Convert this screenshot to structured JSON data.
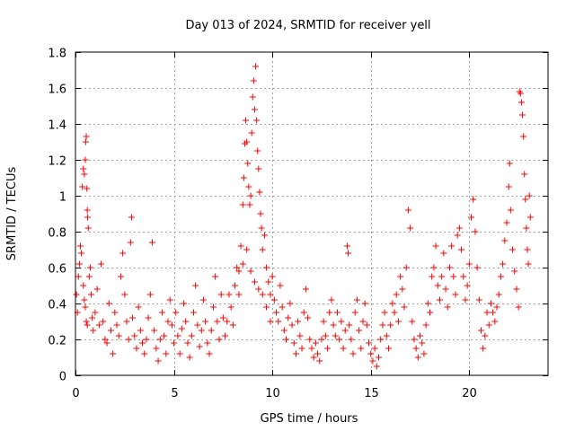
{
  "chart_data": {
    "type": "scatter",
    "title": "Day 013 of 2024, SRMTID for receiver yell",
    "xlabel": "GPS time / hours",
    "ylabel": "SRMTID / TECUs",
    "xlim": [
      0,
      24
    ],
    "ylim": [
      0,
      1.8
    ],
    "x_ticks": [
      0,
      5,
      10,
      15,
      20
    ],
    "x_tick_labels": [
      "0",
      "5",
      "10",
      "15",
      "20"
    ],
    "y_ticks": [
      0,
      0.2,
      0.4,
      0.6,
      0.8,
      1.0,
      1.2,
      1.4,
      1.6,
      1.8
    ],
    "y_tick_labels": [
      "0",
      "0.2",
      "0.4",
      "0.6",
      "0.8",
      "1",
      "1.2",
      "1.4",
      "1.6",
      "1.8"
    ],
    "grid": true,
    "marker": "plus",
    "color": "#ff0000",
    "series": [
      {
        "name": "SRMTID",
        "points": [
          [
            0.05,
            0.45
          ],
          [
            0.1,
            0.35
          ],
          [
            0.15,
            0.55
          ],
          [
            0.2,
            0.62
          ],
          [
            0.25,
            0.72
          ],
          [
            0.3,
            0.68
          ],
          [
            0.35,
            1.05
          ],
          [
            0.4,
            1.15
          ],
          [
            0.45,
            1.12
          ],
          [
            0.5,
            1.2
          ],
          [
            0.52,
            1.3
          ],
          [
            0.55,
            1.33
          ],
          [
            0.58,
            1.04
          ],
          [
            0.6,
            0.92
          ],
          [
            0.62,
            0.88
          ],
          [
            0.65,
            0.82
          ],
          [
            0.4,
            0.5
          ],
          [
            0.45,
            0.42
          ],
          [
            0.5,
            0.38
          ],
          [
            0.55,
            0.3
          ],
          [
            0.6,
            0.28
          ],
          [
            0.7,
            0.55
          ],
          [
            0.75,
            0.6
          ],
          [
            0.8,
            0.45
          ],
          [
            0.85,
            0.32
          ],
          [
            0.9,
            0.25
          ],
          [
            1.0,
            0.35
          ],
          [
            1.1,
            0.48
          ],
          [
            1.2,
            0.28
          ],
          [
            1.3,
            0.62
          ],
          [
            1.4,
            0.3
          ],
          [
            1.5,
            0.2
          ],
          [
            1.6,
            0.18
          ],
          [
            1.7,
            0.4
          ],
          [
            1.8,
            0.25
          ],
          [
            1.9,
            0.12
          ],
          [
            2.0,
            0.35
          ],
          [
            2.1,
            0.28
          ],
          [
            2.2,
            0.22
          ],
          [
            2.3,
            0.55
          ],
          [
            2.4,
            0.68
          ],
          [
            2.5,
            0.45
          ],
          [
            2.6,
            0.3
          ],
          [
            2.7,
            0.2
          ],
          [
            2.8,
            0.74
          ],
          [
            2.85,
            0.88
          ],
          [
            2.9,
            0.32
          ],
          [
            3.0,
            0.22
          ],
          [
            3.1,
            0.15
          ],
          [
            3.2,
            0.38
          ],
          [
            3.3,
            0.25
          ],
          [
            3.4,
            0.18
          ],
          [
            3.5,
            0.12
          ],
          [
            3.6,
            0.2
          ],
          [
            3.7,
            0.32
          ],
          [
            3.8,
            0.45
          ],
          [
            3.9,
            0.74
          ],
          [
            4.0,
            0.25
          ],
          [
            4.1,
            0.15
          ],
          [
            4.2,
            0.08
          ],
          [
            4.3,
            0.2
          ],
          [
            4.4,
            0.35
          ],
          [
            4.5,
            0.22
          ],
          [
            4.6,
            0.12
          ],
          [
            4.7,
            0.3
          ],
          [
            4.8,
            0.42
          ],
          [
            4.9,
            0.28
          ],
          [
            5.0,
            0.18
          ],
          [
            5.1,
            0.35
          ],
          [
            5.2,
            0.22
          ],
          [
            5.3,
            0.12
          ],
          [
            5.4,
            0.26
          ],
          [
            5.5,
            0.4
          ],
          [
            5.6,
            0.3
          ],
          [
            5.7,
            0.18
          ],
          [
            5.8,
            0.1
          ],
          [
            5.9,
            0.22
          ],
          [
            6.0,
            0.35
          ],
          [
            6.1,
            0.5
          ],
          [
            6.2,
            0.28
          ],
          [
            6.3,
            0.16
          ],
          [
            6.4,
            0.25
          ],
          [
            6.5,
            0.42
          ],
          [
            6.6,
            0.3
          ],
          [
            6.7,
            0.18
          ],
          [
            6.8,
            0.12
          ],
          [
            6.9,
            0.25
          ],
          [
            7.0,
            0.38
          ],
          [
            7.1,
            0.55
          ],
          [
            7.2,
            0.3
          ],
          [
            7.3,
            0.2
          ],
          [
            7.4,
            0.45
          ],
          [
            7.5,
            0.32
          ],
          [
            7.6,
            0.22
          ],
          [
            7.7,
            0.3
          ],
          [
            7.8,
            0.45
          ],
          [
            7.9,
            0.38
          ],
          [
            8.0,
            0.28
          ],
          [
            8.1,
            0.5
          ],
          [
            8.2,
            0.6
          ],
          [
            8.3,
            0.45
          ],
          [
            8.4,
            0.72
          ],
          [
            8.5,
            0.95
          ],
          [
            8.55,
            1.1
          ],
          [
            8.6,
            1.29
          ],
          [
            8.65,
            1.42
          ],
          [
            8.7,
            1.3
          ],
          [
            8.75,
            1.18
          ],
          [
            8.8,
            1.05
          ],
          [
            8.85,
            0.95
          ],
          [
            8.9,
            1.0
          ],
          [
            8.95,
            1.35
          ],
          [
            9.0,
            1.55
          ],
          [
            9.05,
            1.64
          ],
          [
            9.1,
            1.48
          ],
          [
            9.15,
            1.72
          ],
          [
            9.2,
            1.42
          ],
          [
            9.25,
            1.25
          ],
          [
            9.3,
            1.15
          ],
          [
            9.35,
            1.02
          ],
          [
            9.4,
            0.9
          ],
          [
            9.45,
            0.82
          ],
          [
            9.5,
            0.7
          ],
          [
            9.6,
            0.78
          ],
          [
            9.7,
            0.6
          ],
          [
            9.8,
            0.52
          ],
          [
            9.9,
            0.45
          ],
          [
            8.3,
            0.58
          ],
          [
            8.5,
            0.62
          ],
          [
            8.7,
            0.7
          ],
          [
            8.9,
            0.58
          ],
          [
            9.1,
            0.52
          ],
          [
            9.3,
            0.48
          ],
          [
            9.5,
            0.45
          ],
          [
            9.7,
            0.38
          ],
          [
            9.9,
            0.3
          ],
          [
            10.0,
            0.55
          ],
          [
            10.1,
            0.42
          ],
          [
            10.2,
            0.35
          ],
          [
            10.3,
            0.3
          ],
          [
            10.4,
            0.5
          ],
          [
            10.5,
            0.38
          ],
          [
            10.6,
            0.25
          ],
          [
            10.7,
            0.2
          ],
          [
            10.8,
            0.32
          ],
          [
            10.9,
            0.4
          ],
          [
            11.0,
            0.28
          ],
          [
            11.1,
            0.18
          ],
          [
            11.2,
            0.12
          ],
          [
            11.3,
            0.3
          ],
          [
            11.4,
            0.22
          ],
          [
            11.5,
            0.15
          ],
          [
            11.6,
            0.35
          ],
          [
            11.7,
            0.48
          ],
          [
            11.8,
            0.32
          ],
          [
            11.9,
            0.2
          ],
          [
            12.0,
            0.15
          ],
          [
            12.1,
            0.1
          ],
          [
            12.2,
            0.18
          ],
          [
            12.3,
            0.12
          ],
          [
            12.4,
            0.08
          ],
          [
            12.5,
            0.2
          ],
          [
            12.6,
            0.3
          ],
          [
            12.7,
            0.22
          ],
          [
            12.8,
            0.15
          ],
          [
            12.9,
            0.35
          ],
          [
            13.0,
            0.42
          ],
          [
            13.1,
            0.28
          ],
          [
            13.2,
            0.22
          ],
          [
            13.3,
            0.35
          ],
          [
            13.4,
            0.2
          ],
          [
            13.5,
            0.3
          ],
          [
            13.6,
            0.15
          ],
          [
            13.7,
            0.25
          ],
          [
            13.8,
            0.72
          ],
          [
            13.85,
            0.68
          ],
          [
            13.9,
            0.28
          ],
          [
            14.0,
            0.2
          ],
          [
            14.1,
            0.12
          ],
          [
            14.2,
            0.35
          ],
          [
            14.3,
            0.42
          ],
          [
            14.4,
            0.25
          ],
          [
            14.5,
            0.15
          ],
          [
            14.6,
            0.3
          ],
          [
            14.7,
            0.4
          ],
          [
            14.8,
            0.28
          ],
          [
            14.9,
            0.18
          ],
          [
            15.0,
            0.12
          ],
          [
            15.1,
            0.08
          ],
          [
            15.2,
            0.15
          ],
          [
            15.3,
            0.05
          ],
          [
            15.4,
            0.1
          ],
          [
            15.5,
            0.2
          ],
          [
            15.6,
            0.28
          ],
          [
            15.7,
            0.35
          ],
          [
            15.8,
            0.22
          ],
          [
            15.9,
            0.15
          ],
          [
            16.0,
            0.28
          ],
          [
            16.1,
            0.4
          ],
          [
            16.2,
            0.35
          ],
          [
            16.3,
            0.45
          ],
          [
            16.4,
            0.3
          ],
          [
            16.5,
            0.55
          ],
          [
            16.6,
            0.48
          ],
          [
            16.7,
            0.38
          ],
          [
            16.8,
            0.6
          ],
          [
            16.9,
            0.92
          ],
          [
            17.0,
            0.82
          ],
          [
            17.1,
            0.3
          ],
          [
            17.2,
            0.2
          ],
          [
            17.3,
            0.15
          ],
          [
            17.4,
            0.1
          ],
          [
            17.5,
            0.22
          ],
          [
            17.6,
            0.18
          ],
          [
            17.7,
            0.12
          ],
          [
            17.8,
            0.28
          ],
          [
            17.9,
            0.4
          ],
          [
            18.0,
            0.35
          ],
          [
            18.1,
            0.55
          ],
          [
            18.2,
            0.6
          ],
          [
            18.3,
            0.72
          ],
          [
            18.4,
            0.5
          ],
          [
            18.5,
            0.42
          ],
          [
            18.6,
            0.55
          ],
          [
            18.7,
            0.68
          ],
          [
            18.8,
            0.48
          ],
          [
            18.9,
            0.38
          ],
          [
            19.0,
            0.6
          ],
          [
            19.1,
            0.72
          ],
          [
            19.2,
            0.55
          ],
          [
            19.3,
            0.45
          ],
          [
            19.4,
            0.78
          ],
          [
            19.5,
            0.82
          ],
          [
            19.6,
            0.7
          ],
          [
            19.7,
            0.55
          ],
          [
            19.8,
            0.42
          ],
          [
            19.9,
            0.5
          ],
          [
            20.0,
            0.62
          ],
          [
            20.1,
            0.88
          ],
          [
            20.2,
            0.98
          ],
          [
            20.3,
            0.8
          ],
          [
            20.4,
            0.6
          ],
          [
            20.5,
            0.42
          ],
          [
            20.6,
            0.25
          ],
          [
            20.7,
            0.15
          ],
          [
            20.8,
            0.22
          ],
          [
            20.9,
            0.35
          ],
          [
            21.0,
            0.28
          ],
          [
            21.1,
            0.4
          ],
          [
            21.2,
            0.35
          ],
          [
            21.3,
            0.3
          ],
          [
            21.4,
            0.38
          ],
          [
            21.5,
            0.45
          ],
          [
            21.6,
            0.55
          ],
          [
            21.7,
            0.62
          ],
          [
            21.8,
            0.75
          ],
          [
            21.9,
            0.85
          ],
          [
            22.0,
            1.05
          ],
          [
            22.05,
            1.18
          ],
          [
            22.1,
            0.92
          ],
          [
            22.2,
            0.7
          ],
          [
            22.3,
            0.58
          ],
          [
            22.4,
            0.48
          ],
          [
            22.5,
            0.38
          ],
          [
            22.55,
            1.58
          ],
          [
            22.6,
            1.57
          ],
          [
            22.65,
            1.52
          ],
          [
            22.7,
            1.45
          ],
          [
            22.75,
            1.33
          ],
          [
            22.8,
            1.12
          ],
          [
            22.85,
            0.98
          ],
          [
            22.9,
            0.82
          ],
          [
            22.95,
            0.7
          ],
          [
            23.0,
            0.62
          ],
          [
            23.05,
            1.0
          ],
          [
            23.1,
            0.88
          ]
        ]
      }
    ]
  }
}
